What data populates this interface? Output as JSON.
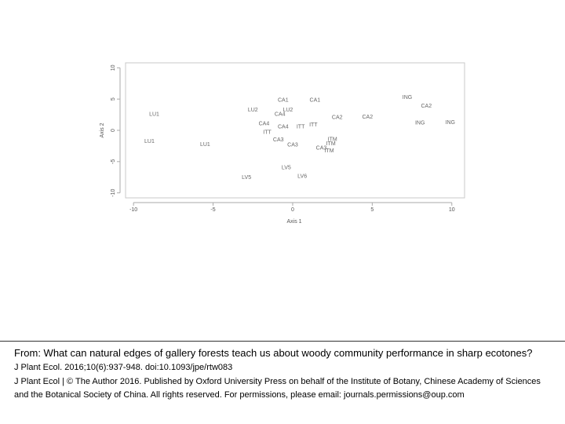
{
  "caption": {
    "title": "From: What can natural edges of gallery forests teach us about woody community performance in sharp ecotones?",
    "citation": "J Plant Ecol. 2016;10(6):937-948. doi:10.1093/jpe/rtw083",
    "copyright": "J Plant Ecol | © The Author 2016. Published by Oxford University Press on behalf of the Institute of Botany, Chinese Academy of Sciences and the Botanical Society of China. All rights reserved. For permissions, please email: journals.permissions@oup.com"
  },
  "chart_data": {
    "type": "scatter",
    "xlabel": "Axis 1",
    "ylabel": "Axis 2",
    "xlim": [
      -10.5,
      10.8
    ],
    "ylim": [
      -10.8,
      10.8
    ],
    "xticks": [
      -10,
      -5,
      0,
      5,
      10
    ],
    "yticks": [
      -10,
      -5,
      0,
      5,
      10
    ],
    "xtick_labels": [
      "-10",
      "-5",
      "0",
      "5",
      "10"
    ],
    "ytick_labels": [
      "-10",
      "-5",
      "0",
      "5",
      "10"
    ],
    "grid": false,
    "points": [
      {
        "label": "LU1",
        "x": -8.7,
        "y": 2.5
      },
      {
        "label": "LU1",
        "x": -9.0,
        "y": -1.8
      },
      {
        "label": "LU1",
        "x": -5.5,
        "y": -2.3
      },
      {
        "label": "LU2",
        "x": -2.5,
        "y": 3.2
      },
      {
        "label": "CA1",
        "x": -0.6,
        "y": 4.8
      },
      {
        "label": "CA1",
        "x": 1.4,
        "y": 4.8
      },
      {
        "label": "LU2",
        "x": -0.3,
        "y": 3.2
      },
      {
        "label": "CA4",
        "x": -0.8,
        "y": 2.5
      },
      {
        "label": "CA4",
        "x": -1.8,
        "y": 1.0
      },
      {
        "label": "CA4",
        "x": -0.6,
        "y": 0.5
      },
      {
        "label": "ITT",
        "x": -1.6,
        "y": -0.4
      },
      {
        "label": "ITT",
        "x": 0.5,
        "y": 0.5
      },
      {
        "label": "ITT",
        "x": 1.3,
        "y": 0.8
      },
      {
        "label": "CA2",
        "x": 2.8,
        "y": 2.0
      },
      {
        "label": "CA2",
        "x": 4.7,
        "y": 2.1
      },
      {
        "label": "ING",
        "x": 7.2,
        "y": 5.2
      },
      {
        "label": "CA2",
        "x": 8.4,
        "y": 3.8
      },
      {
        "label": "ING",
        "x": 8.0,
        "y": 1.1
      },
      {
        "label": "ING",
        "x": 9.9,
        "y": 1.2
      },
      {
        "label": "CA3",
        "x": -0.9,
        "y": -1.6
      },
      {
        "label": "CA3",
        "x": 0.0,
        "y": -2.4
      },
      {
        "label": "ITM",
        "x": 2.5,
        "y": -1.5
      },
      {
        "label": "ITM",
        "x": 2.4,
        "y": -2.2
      },
      {
        "label": "CA3",
        "x": 1.8,
        "y": -2.9
      },
      {
        "label": "ITM",
        "x": 2.3,
        "y": -3.3
      },
      {
        "label": "LV5",
        "x": -0.4,
        "y": -6.0
      },
      {
        "label": "LV5",
        "x": -2.9,
        "y": -7.6
      },
      {
        "label": "LV6",
        "x": 0.6,
        "y": -7.4
      }
    ]
  }
}
